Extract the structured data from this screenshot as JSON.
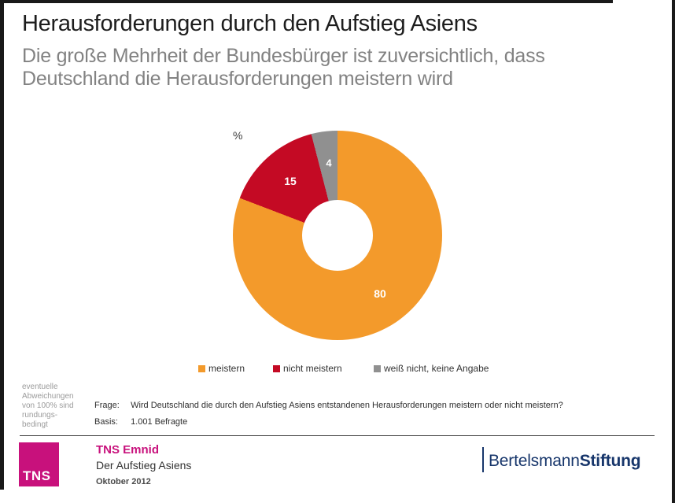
{
  "slide": {
    "title": "Herausforderungen durch den Aufstieg Asiens",
    "subtitle_line1": "Die große Mehrheit der Bundesbürger ist zuversichtlich, dass",
    "subtitle_line2": "Deutschland die Herausforderungen meistern wird"
  },
  "chart_data": {
    "type": "pie",
    "donut": true,
    "unit_label": "%",
    "categories": [
      "meistern",
      "nicht meistern",
      "weiß nicht, keine Angabe"
    ],
    "values": [
      80,
      15,
      4
    ],
    "colors": [
      "#F39A2B",
      "#C40A24",
      "#909090"
    ],
    "legend_position": "bottom",
    "start_angle_deg": 0,
    "direction": "clockwise"
  },
  "footnotes": {
    "rounding_note_line1": "eventuelle",
    "rounding_note_line2": "Abweichungen",
    "rounding_note_line3": "von 100% sind",
    "rounding_note_line4": "rundungs-",
    "rounding_note_line5": "bedingt",
    "frage_label": "Frage:",
    "frage_text": "Wird Deutschland die durch den Aufstieg Asiens entstandenen Herausforderungen meistern oder nicht meistern?",
    "basis_label": "Basis:",
    "basis_text": "1.001 Befragte"
  },
  "footer": {
    "tns_logo_text": "TNS",
    "org_name": "TNS Emnid",
    "study_title": "Der Aufstieg Asiens",
    "date": "Oktober 2012",
    "bertelsmann_name": "Bertelsmann",
    "bertelsmann_suffix": "Stiftung",
    "colors": {
      "tns_magenta": "#C8117C",
      "bertelsmann_blue": "#17366B"
    }
  }
}
